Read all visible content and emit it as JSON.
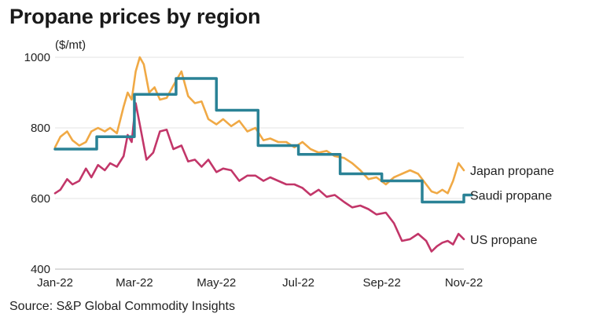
{
  "title": "Propane prices by region",
  "source": "Source: S&P Global Commodity Insights",
  "chart_data": {
    "type": "line",
    "title": "Propane prices by region",
    "unit_label": "($/mt)",
    "xlabel": "",
    "ylabel": "",
    "x_ticks": [
      "Jan-22",
      "Mar-22",
      "May-22",
      "Jul-22",
      "Sep-22",
      "Nov-22"
    ],
    "y_ticks": [
      400,
      600,
      800,
      1000
    ],
    "ylim": [
      400,
      1000
    ],
    "xlim": [
      "2022-01-01",
      "2022-11-01"
    ],
    "grid": "horizontal",
    "colors": {
      "Japan propane": "#F0A945",
      "Saudi propane": "#2A8296",
      "US propane": "#C23669"
    },
    "series": [
      {
        "name": "Japan propane",
        "style": "line",
        "x": [
          "2022-01-01",
          "2022-01-05",
          "2022-01-10",
          "2022-01-14",
          "2022-01-19",
          "2022-01-24",
          "2022-01-28",
          "2022-02-02",
          "2022-02-07",
          "2022-02-11",
          "2022-02-16",
          "2022-02-21",
          "2022-02-24",
          "2022-02-27",
          "2022-03-02",
          "2022-03-05",
          "2022-03-08",
          "2022-03-12",
          "2022-03-16",
          "2022-03-20",
          "2022-03-25",
          "2022-03-30",
          "2022-04-05",
          "2022-04-10",
          "2022-04-15",
          "2022-04-20",
          "2022-04-25",
          "2022-05-01",
          "2022-05-06",
          "2022-05-12",
          "2022-05-18",
          "2022-05-24",
          "2022-05-30",
          "2022-06-05",
          "2022-06-10",
          "2022-06-16",
          "2022-06-22",
          "2022-06-28",
          "2022-07-04",
          "2022-07-10",
          "2022-07-16",
          "2022-07-22",
          "2022-07-28",
          "2022-08-04",
          "2022-08-10",
          "2022-08-16",
          "2022-08-22",
          "2022-08-28",
          "2022-09-04",
          "2022-09-10",
          "2022-09-16",
          "2022-09-22",
          "2022-09-28",
          "2022-10-04",
          "2022-10-08",
          "2022-10-12",
          "2022-10-16",
          "2022-10-20",
          "2022-10-24",
          "2022-10-28",
          "2022-11-01"
        ],
        "y": [
          745,
          775,
          790,
          765,
          750,
          760,
          790,
          800,
          790,
          800,
          785,
          860,
          900,
          880,
          960,
          1000,
          980,
          900,
          915,
          880,
          885,
          920,
          960,
          890,
          870,
          875,
          825,
          810,
          825,
          805,
          820,
          790,
          800,
          765,
          770,
          760,
          760,
          745,
          760,
          740,
          730,
          735,
          720,
          715,
          700,
          680,
          655,
          660,
          640,
          660,
          670,
          680,
          670,
          640,
          620,
          615,
          625,
          615,
          650,
          700,
          680
        ]
      },
      {
        "name": "Saudi propane",
        "style": "step",
        "x": [
          "2022-01-01",
          "2022-02-01",
          "2022-03-01",
          "2022-04-01",
          "2022-05-01",
          "2022-06-01",
          "2022-07-01",
          "2022-08-01",
          "2022-09-01",
          "2022-10-01",
          "2022-11-01"
        ],
        "y": [
          740,
          775,
          895,
          940,
          850,
          750,
          725,
          670,
          650,
          590,
          610
        ]
      },
      {
        "name": "US propane",
        "style": "line",
        "x": [
          "2022-01-01",
          "2022-01-05",
          "2022-01-10",
          "2022-01-14",
          "2022-01-19",
          "2022-01-24",
          "2022-01-28",
          "2022-02-02",
          "2022-02-07",
          "2022-02-11",
          "2022-02-16",
          "2022-02-21",
          "2022-02-24",
          "2022-02-27",
          "2022-03-02",
          "2022-03-06",
          "2022-03-10",
          "2022-03-15",
          "2022-03-20",
          "2022-03-25",
          "2022-03-30",
          "2022-04-05",
          "2022-04-10",
          "2022-04-15",
          "2022-04-20",
          "2022-04-25",
          "2022-05-01",
          "2022-05-06",
          "2022-05-12",
          "2022-05-18",
          "2022-05-24",
          "2022-05-30",
          "2022-06-05",
          "2022-06-10",
          "2022-06-16",
          "2022-06-22",
          "2022-06-28",
          "2022-07-04",
          "2022-07-10",
          "2022-07-16",
          "2022-07-22",
          "2022-07-28",
          "2022-08-04",
          "2022-08-10",
          "2022-08-16",
          "2022-08-22",
          "2022-08-28",
          "2022-09-04",
          "2022-09-10",
          "2022-09-16",
          "2022-09-22",
          "2022-09-28",
          "2022-10-04",
          "2022-10-08",
          "2022-10-12",
          "2022-10-16",
          "2022-10-20",
          "2022-10-24",
          "2022-10-28",
          "2022-11-01"
        ],
        "y": [
          615,
          625,
          655,
          640,
          650,
          685,
          660,
          695,
          680,
          700,
          690,
          720,
          780,
          760,
          870,
          790,
          710,
          730,
          790,
          795,
          740,
          750,
          705,
          710,
          690,
          710,
          675,
          685,
          680,
          650,
          665,
          665,
          650,
          660,
          650,
          640,
          640,
          630,
          610,
          625,
          605,
          610,
          590,
          575,
          580,
          570,
          555,
          560,
          530,
          480,
          485,
          500,
          480,
          450,
          465,
          475,
          480,
          470,
          500,
          485
        ]
      }
    ]
  }
}
